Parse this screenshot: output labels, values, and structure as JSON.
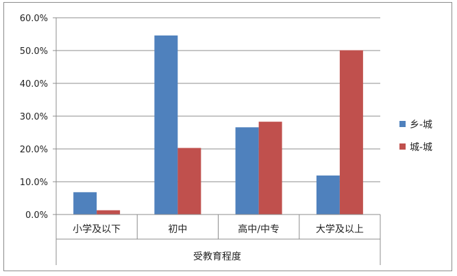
{
  "chart_data": {
    "type": "bar",
    "title": "",
    "xlabel": "受教育程度",
    "ylabel": "",
    "ylim": [
      0,
      60
    ],
    "yticks": [
      "0.0%",
      "10.0%",
      "20.0%",
      "30.0%",
      "40.0%",
      "50.0%",
      "60.0%"
    ],
    "ytick_values": [
      0,
      10,
      20,
      30,
      40,
      50,
      60
    ],
    "categories": [
      "小学及以下",
      "初中",
      "高中/中专",
      "大学及以上"
    ],
    "series": [
      {
        "name": "乡-城",
        "color": "#4F81BD",
        "values": [
          6.8,
          54.6,
          26.6,
          11.9
        ]
      },
      {
        "name": "城-城",
        "color": "#C0504D",
        "values": [
          1.3,
          20.3,
          28.3,
          50.1
        ]
      }
    ],
    "grid": true,
    "legend": "right"
  }
}
